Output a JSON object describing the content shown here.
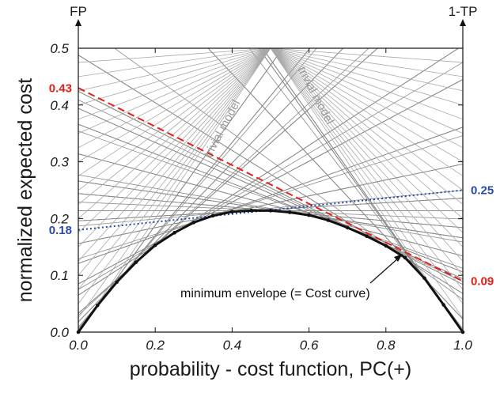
{
  "chart_data": {
    "type": "line",
    "title": "",
    "xlabel": "probability - cost function, PC(+)",
    "ylabel": "normalized expected cost",
    "xlim": [
      0.0,
      1.0
    ],
    "ylim": [
      0.0,
      0.5
    ],
    "x_ticks": [
      "0.0",
      "0.2",
      "0.4",
      "0.6",
      "0.8",
      "1.0"
    ],
    "y_ticks": [
      "0.0",
      "0.1",
      "0.2",
      "0.3",
      "0.4",
      "0.5"
    ],
    "left_axis_label": "FP",
    "right_axis_label": "1-TP",
    "trivial_model_label": "trivial model",
    "envelope_annotation": "minimum envelope (= Cost curve)",
    "highlighted_lines": [
      {
        "fp": 0.43,
        "one_minus_tp": 0.09,
        "left_label": "0.43",
        "right_label": "0.09",
        "color": "#e0201b",
        "style": "dashed"
      },
      {
        "fp": 0.18,
        "one_minus_tp": 0.25,
        "left_label": "0.18",
        "right_label": "0.25",
        "color": "#2a4aa8",
        "style": "dotted"
      }
    ],
    "cost_curve": {
      "x": [
        0.0,
        0.05,
        0.1,
        0.15,
        0.2,
        0.25,
        0.3,
        0.35,
        0.4,
        0.45,
        0.5,
        0.55,
        0.6,
        0.65,
        0.7,
        0.75,
        0.8,
        0.85,
        0.9,
        0.95,
        1.0
      ],
      "y": [
        0.0,
        0.047,
        0.088,
        0.123,
        0.153,
        0.175,
        0.193,
        0.205,
        0.212,
        0.214,
        0.214,
        0.211,
        0.206,
        0.197,
        0.184,
        0.169,
        0.152,
        0.131,
        0.095,
        0.048,
        0.0
      ],
      "color": "#111111"
    },
    "cost_lines_color": "#8a8a8a",
    "trivial_lines_color": "#a8a8a8",
    "grid": false
  }
}
